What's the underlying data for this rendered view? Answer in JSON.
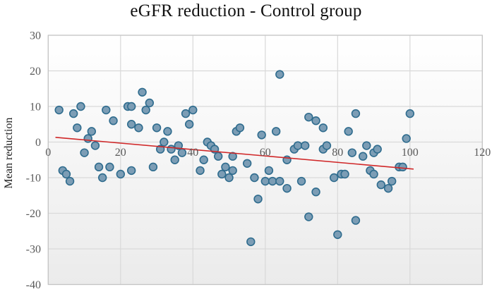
{
  "title": "eGFR reduction - Control group",
  "chart_data": {
    "type": "scatter",
    "title": "eGFR reduction - Control group",
    "xlabel": "",
    "ylabel": "Mean reduction",
    "xlim": [
      0,
      120
    ],
    "ylim": [
      -40,
      30
    ],
    "x_ticks": [
      0,
      20,
      40,
      60,
      80,
      100,
      120
    ],
    "y_ticks": [
      30,
      20,
      10,
      0,
      -10,
      -20,
      -30,
      -40
    ],
    "grid": true,
    "legend": false,
    "points": [
      [
        3,
        9
      ],
      [
        4,
        -8
      ],
      [
        5,
        -9
      ],
      [
        6,
        -11
      ],
      [
        7,
        8
      ],
      [
        8,
        4
      ],
      [
        9,
        10
      ],
      [
        10,
        -3
      ],
      [
        11,
        1
      ],
      [
        12,
        3
      ],
      [
        13,
        -1
      ],
      [
        14,
        -7
      ],
      [
        15,
        -10
      ],
      [
        16,
        9
      ],
      [
        17,
        -7
      ],
      [
        18,
        6
      ],
      [
        20,
        -9
      ],
      [
        22,
        10
      ],
      [
        23,
        10
      ],
      [
        23,
        5
      ],
      [
        23,
        -8
      ],
      [
        25,
        4
      ],
      [
        26,
        14
      ],
      [
        27,
        9
      ],
      [
        28,
        11
      ],
      [
        29,
        -7
      ],
      [
        30,
        4
      ],
      [
        31,
        -2
      ],
      [
        32,
        0
      ],
      [
        33,
        3
      ],
      [
        34,
        -2
      ],
      [
        35,
        -5
      ],
      [
        36,
        -1
      ],
      [
        37,
        -3
      ],
      [
        38,
        8
      ],
      [
        39,
        5
      ],
      [
        40,
        9
      ],
      [
        42,
        -8
      ],
      [
        43,
        -5
      ],
      [
        44,
        0
      ],
      [
        45,
        -1
      ],
      [
        46,
        -2
      ],
      [
        47,
        -4
      ],
      [
        48,
        -9
      ],
      [
        49,
        -7
      ],
      [
        50,
        -10
      ],
      [
        51,
        -4
      ],
      [
        51,
        -8
      ],
      [
        52,
        3
      ],
      [
        53,
        4
      ],
      [
        55,
        -6
      ],
      [
        56,
        -28
      ],
      [
        57,
        -10
      ],
      [
        58,
        -16
      ],
      [
        59,
        2
      ],
      [
        60,
        -11
      ],
      [
        61,
        -8
      ],
      [
        62,
        -11
      ],
      [
        63,
        3
      ],
      [
        64,
        19
      ],
      [
        64,
        -11
      ],
      [
        66,
        -5
      ],
      [
        66,
        -13
      ],
      [
        68,
        -2
      ],
      [
        69,
        -1
      ],
      [
        70,
        -11
      ],
      [
        71,
        -1
      ],
      [
        72,
        7
      ],
      [
        72,
        -21
      ],
      [
        74,
        6
      ],
      [
        74,
        -14
      ],
      [
        76,
        4
      ],
      [
        76,
        -2
      ],
      [
        77,
        -1
      ],
      [
        79,
        -10
      ],
      [
        80,
        -26
      ],
      [
        81,
        -9
      ],
      [
        82,
        -9
      ],
      [
        83,
        3
      ],
      [
        84,
        -3
      ],
      [
        85,
        8
      ],
      [
        85,
        -22
      ],
      [
        87,
        -4
      ],
      [
        88,
        -1
      ],
      [
        89,
        -8
      ],
      [
        90,
        -3
      ],
      [
        90,
        -9
      ],
      [
        91,
        -2
      ],
      [
        92,
        -12
      ],
      [
        94,
        -13
      ],
      [
        95,
        -11
      ],
      [
        97,
        -7
      ],
      [
        98,
        -7
      ],
      [
        99,
        1
      ],
      [
        100,
        8
      ]
    ],
    "trendline": {
      "type": "linear",
      "slope": -0.09,
      "intercept": 1.5,
      "x_start": 2,
      "x_end": 101,
      "color": "#d02728"
    },
    "marker": {
      "shape": "circle",
      "fill": "#7c9db5",
      "stroke": "#2f6c8e"
    },
    "colors": {
      "gridline": "#d9d9d9",
      "plot_border": "#c3c3c3",
      "tick_text": "#595959",
      "title_text": "#111111",
      "plot_bg_top": "#ffffff",
      "plot_bg_bottom": "#ebebeb"
    }
  }
}
